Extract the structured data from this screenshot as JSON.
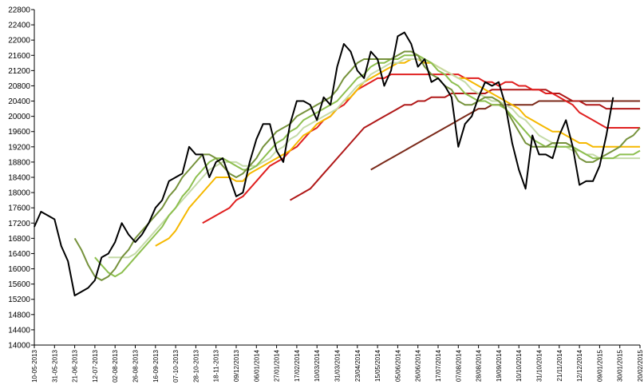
{
  "chart_data": {
    "type": "line",
    "categories": [
      "10-05-2013",
      null,
      null,
      "31-05-2013",
      null,
      null,
      "21-06-2013",
      null,
      null,
      "12-07-2013",
      null,
      null,
      "02-08-2013",
      null,
      null,
      "26-08-2013",
      null,
      null,
      "16-09-2013",
      null,
      null,
      "07-10-2013",
      null,
      null,
      "28-10-2013",
      null,
      null,
      "18-11-2013",
      null,
      null,
      "09/12/2013",
      null,
      null,
      "06/01/2014",
      null,
      null,
      "27/01/2014",
      null,
      null,
      "17/02/2014",
      null,
      null,
      "10/03/2014",
      null,
      null,
      "31/03/2014",
      null,
      null,
      "23/04/2014",
      null,
      null,
      "15/05/2014",
      null,
      null,
      "05/06/2014",
      null,
      null,
      "26/06/2014",
      null,
      null,
      "17/07/2014",
      null,
      null,
      "07/08/2014",
      null,
      null,
      "28/08/2014",
      null,
      null,
      "19/09/2014",
      null,
      null,
      "10/10/2014",
      null,
      null,
      "31/10/2014",
      null,
      null,
      "21/11/2014",
      null,
      null,
      "12/12/2014",
      null,
      null,
      "09/01/2015",
      null,
      null,
      "30/01/2015",
      null,
      null,
      "20/02/2015"
    ],
    "series": [
      {
        "color": "#7b2a1a",
        "values": [
          null,
          null,
          null,
          null,
          null,
          null,
          null,
          null,
          null,
          null,
          null,
          null,
          null,
          null,
          null,
          null,
          null,
          null,
          null,
          null,
          null,
          null,
          null,
          null,
          null,
          null,
          null,
          null,
          null,
          null,
          null,
          null,
          null,
          null,
          null,
          null,
          null,
          null,
          null,
          null,
          null,
          null,
          null,
          null,
          null,
          null,
          null,
          null,
          null,
          null,
          18600,
          18700,
          18800,
          18900,
          19000,
          19100,
          19200,
          19300,
          19400,
          19500,
          19600,
          19700,
          19800,
          19900,
          20000,
          20100,
          20200,
          20200,
          20300,
          20300,
          20300,
          20300,
          20300,
          20300,
          20300,
          20400,
          20400,
          20400,
          20400,
          20400,
          20400,
          20400,
          20400,
          20400,
          20400,
          20400,
          20400,
          20400,
          20400,
          20400,
          20400
        ]
      },
      {
        "color": "#b01818",
        "values": [
          null,
          null,
          null,
          null,
          null,
          null,
          null,
          null,
          null,
          null,
          null,
          null,
          null,
          null,
          null,
          null,
          null,
          null,
          null,
          null,
          null,
          null,
          null,
          null,
          null,
          null,
          null,
          null,
          null,
          null,
          null,
          null,
          null,
          null,
          null,
          null,
          null,
          null,
          17800,
          17900,
          18000,
          18100,
          18300,
          18500,
          18700,
          18900,
          19100,
          19300,
          19500,
          19700,
          19800,
          19900,
          20000,
          20100,
          20200,
          20300,
          20300,
          20400,
          20400,
          20500,
          20500,
          20500,
          20600,
          20600,
          20600,
          20600,
          20600,
          20600,
          20700,
          20700,
          20700,
          20700,
          20700,
          20700,
          20700,
          20700,
          20700,
          20600,
          20600,
          20500,
          20400,
          20400,
          20300,
          20300,
          20300,
          20200,
          20200,
          20200,
          20200,
          20200,
          20200
        ]
      },
      {
        "color": "#e02020",
        "values": [
          null,
          null,
          null,
          null,
          null,
          null,
          null,
          null,
          null,
          null,
          null,
          null,
          null,
          null,
          null,
          null,
          null,
          null,
          null,
          null,
          null,
          null,
          null,
          null,
          null,
          17200,
          17300,
          17400,
          17500,
          17600,
          17800,
          17900,
          18100,
          18300,
          18500,
          18700,
          18800,
          18900,
          19100,
          19200,
          19400,
          19600,
          19700,
          19900,
          20000,
          20200,
          20300,
          20500,
          20700,
          20800,
          20900,
          21000,
          21000,
          21100,
          21100,
          21100,
          21100,
          21100,
          21100,
          21100,
          21100,
          21100,
          21100,
          21100,
          21000,
          21000,
          21000,
          20900,
          20900,
          20800,
          20900,
          20900,
          20800,
          20800,
          20700,
          20700,
          20600,
          20600,
          20500,
          20400,
          20300,
          20100,
          20000,
          19900,
          19800,
          19700,
          19700,
          19700,
          19700,
          19700,
          19700
        ]
      },
      {
        "color": "#f5b800",
        "values": [
          null,
          null,
          null,
          null,
          null,
          null,
          null,
          null,
          null,
          null,
          null,
          null,
          null,
          null,
          null,
          null,
          null,
          null,
          16600,
          16700,
          16800,
          17000,
          17300,
          17600,
          17800,
          18000,
          18200,
          18400,
          18400,
          18400,
          18300,
          18300,
          18500,
          18600,
          18700,
          18800,
          18900,
          19000,
          19100,
          19300,
          19500,
          19600,
          19800,
          19900,
          20000,
          20200,
          20400,
          20500,
          20700,
          20900,
          21000,
          21100,
          21200,
          21300,
          21400,
          21400,
          21500,
          21500,
          21400,
          21400,
          21300,
          21200,
          21100,
          21000,
          21000,
          20900,
          20800,
          20700,
          20600,
          20500,
          20400,
          20300,
          20200,
          20000,
          19900,
          19800,
          19700,
          19600,
          19600,
          19500,
          19400,
          19300,
          19300,
          19200,
          19200,
          19200,
          19200,
          19200,
          19200,
          19200,
          19200
        ]
      },
      {
        "color": "#c5dba8",
        "values": [
          null,
          null,
          null,
          null,
          null,
          null,
          null,
          null,
          null,
          null,
          null,
          16300,
          16300,
          16300,
          16300,
          16400,
          16600,
          16800,
          17000,
          17200,
          17400,
          17600,
          17800,
          18000,
          18200,
          18400,
          18600,
          18700,
          18800,
          18800,
          18800,
          18700,
          18700,
          18700,
          18800,
          18900,
          19100,
          19200,
          19400,
          19500,
          19700,
          19800,
          19900,
          20000,
          20100,
          20200,
          20400,
          20600,
          20800,
          20900,
          21100,
          21200,
          21300,
          21400,
          21400,
          21500,
          21500,
          21500,
          21500,
          21400,
          21300,
          21200,
          21100,
          21000,
          20900,
          20700,
          20600,
          20500,
          20400,
          20400,
          20300,
          20200,
          20000,
          19900,
          19700,
          19500,
          19400,
          19300,
          19200,
          19200,
          19100,
          19100,
          19000,
          19000,
          18900,
          18900,
          18900,
          18900,
          18900,
          18900,
          18900
        ]
      },
      {
        "color": "#8dbf4f",
        "values": [
          null,
          null,
          null,
          null,
          null,
          null,
          null,
          null,
          null,
          16300,
          16100,
          15900,
          15800,
          15900,
          16100,
          16300,
          16500,
          16700,
          16900,
          17100,
          17400,
          17600,
          17900,
          18100,
          18400,
          18600,
          18800,
          18900,
          18900,
          18800,
          18700,
          18600,
          18600,
          18700,
          18900,
          19100,
          19300,
          19400,
          19600,
          19700,
          19900,
          20000,
          20100,
          20200,
          20300,
          20400,
          20600,
          20800,
          21000,
          21100,
          21300,
          21400,
          21400,
          21500,
          21500,
          21600,
          21600,
          21600,
          21500,
          21400,
          21200,
          21100,
          20900,
          20800,
          20600,
          20500,
          20400,
          20400,
          20300,
          20300,
          20200,
          20000,
          19800,
          19600,
          19400,
          19300,
          19200,
          19200,
          19200,
          19200,
          19200,
          19100,
          19000,
          18900,
          18900,
          18900,
          18900,
          19000,
          19000,
          19000,
          19100
        ]
      },
      {
        "color": "#76923c",
        "values": [
          null,
          null,
          null,
          null,
          null,
          null,
          16800,
          16500,
          16100,
          15800,
          15700,
          15800,
          16000,
          16300,
          16500,
          16800,
          17000,
          17200,
          17400,
          17600,
          17900,
          18100,
          18400,
          18600,
          18800,
          19000,
          19000,
          18900,
          18700,
          18500,
          18400,
          18500,
          18700,
          18900,
          19200,
          19400,
          19600,
          19700,
          19800,
          20000,
          20100,
          20200,
          20300,
          20400,
          20500,
          20700,
          21000,
          21200,
          21400,
          21500,
          21500,
          21500,
          21500,
          21500,
          21600,
          21700,
          21700,
          21600,
          21300,
          21100,
          21000,
          20800,
          20700,
          20400,
          20300,
          20300,
          20400,
          20500,
          20500,
          20400,
          20200,
          19900,
          19600,
          19300,
          19200,
          19200,
          19200,
          19300,
          19300,
          19300,
          19200,
          18900,
          18800,
          18800,
          18900,
          19000,
          19100,
          19200,
          19400,
          19500,
          19700
        ]
      },
      {
        "color": "#000000",
        "values": [
          17100,
          17500,
          17400,
          17300,
          16600,
          16200,
          15300,
          15400,
          15500,
          15700,
          16300,
          16400,
          16700,
          17200,
          16900,
          16700,
          16900,
          17200,
          17600,
          17800,
          18300,
          18400,
          18500,
          19200,
          19000,
          19000,
          18400,
          18800,
          18900,
          18400,
          17900,
          18000,
          18800,
          19400,
          19800,
          19800,
          19100,
          18800,
          19800,
          20400,
          20400,
          20300,
          19900,
          20500,
          20300,
          21300,
          21900,
          21700,
          21200,
          21000,
          21700,
          21500,
          20800,
          21200,
          22100,
          22200,
          21900,
          21300,
          21500,
          20900,
          21000,
          20800,
          20500,
          19200,
          19800,
          20000,
          20500,
          20900,
          20800,
          20900,
          20300,
          19300,
          18600,
          18100,
          19500,
          19000,
          19000,
          18900,
          19500,
          19900,
          19200,
          18200,
          18300,
          18300,
          18700,
          19500,
          20500,
          null,
          null,
          null,
          null
        ]
      }
    ],
    "ylim": [
      14000,
      22800
    ],
    "yticks": [
      14000,
      14400,
      14800,
      15200,
      15600,
      16000,
      16400,
      16800,
      17200,
      17600,
      18000,
      18400,
      18800,
      19200,
      19600,
      20000,
      20400,
      20800,
      21200,
      21600,
      22000,
      22400,
      22800
    ]
  }
}
